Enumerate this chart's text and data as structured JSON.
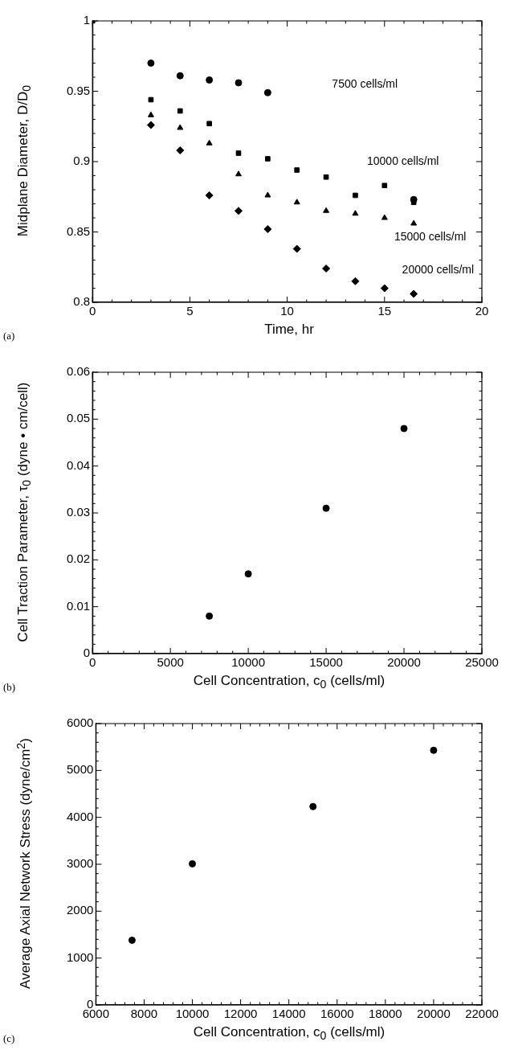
{
  "chart_data": [
    {
      "type": "scatter",
      "xlabel": "Time, hr",
      "ylabel": "Midplane Diameter, D/D$_{0}$",
      "xlim": [
        0,
        20
      ],
      "xticks": [
        0,
        5,
        10,
        15,
        20
      ],
      "ylim": [
        0.8,
        1
      ],
      "yticks": [
        0.8,
        0.85,
        0.9,
        0.95,
        1
      ],
      "grid": false,
      "legend": false,
      "series": [
        {
          "marker": "circle",
          "color": "#000000",
          "x": [
            3,
            4.5,
            6,
            7.5,
            9,
            16.5
          ],
          "values": [
            0.97,
            0.961,
            0.958,
            0.956,
            0.949,
            0.873
          ]
        },
        {
          "marker": "square",
          "color": "#000000",
          "x": [
            0,
            3,
            4.5,
            6,
            7.5,
            9,
            10.5,
            12,
            13.5,
            15,
            16.5
          ],
          "values": [
            1,
            0.944,
            0.936,
            0.927,
            0.906,
            0.902,
            0.894,
            0.889,
            0.876,
            0.883,
            0.871
          ]
        },
        {
          "marker": "triangle",
          "color": "#000000",
          "x": [
            3,
            4.5,
            6,
            7.5,
            9,
            10.5,
            12,
            13.5,
            15,
            16.5
          ],
          "values": [
            0.933,
            0.924,
            0.913,
            0.891,
            0.876,
            0.871,
            0.865,
            0.863,
            0.86,
            0.856
          ]
        },
        {
          "marker": "diamond",
          "color": "#000000",
          "x": [
            3,
            4.5,
            6,
            7.5,
            9,
            10.5,
            12,
            13.5,
            15,
            16.5
          ],
          "values": [
            0.926,
            0.908,
            0.876,
            0.865,
            0.852,
            0.838,
            0.824,
            0.815,
            0.81,
            0.806
          ]
        }
      ],
      "annotations": [
        "7500 cells/ml",
        "10000 cells/ml",
        "15000 cells/ml",
        "20000 cells/ml",
        "(a)"
      ]
    },
    {
      "type": "scatter",
      "xlabel": "Cell Concentration, c$_{0}$ (cells/ml)",
      "ylabel": "Cell Traction Parameter, τ$_{0}$ (dyne • cm/cell)",
      "xlim": [
        0,
        25000
      ],
      "xticks": [
        0,
        5000,
        10000,
        15000,
        20000,
        25000
      ],
      "ylim": [
        0,
        0.06
      ],
      "yticks": [
        0,
        0.01,
        0.02,
        0.03,
        0.04,
        0.05,
        0.06
      ],
      "grid": false,
      "legend": false,
      "marker": "circle",
      "series": [
        {
          "color": "#000000",
          "x": [
            7500,
            10000,
            15000,
            20000
          ],
          "values": [
            0.008,
            0.017,
            0.031,
            0.048
          ]
        }
      ],
      "annotations": [
        "(b)"
      ]
    },
    {
      "type": "scatter",
      "xlabel": "Cell Concentration, c$_{0}$ (cells/ml)",
      "ylabel": "Average Axial Network Stress (dyne/cm$^{2}$)",
      "xlim": [
        6000,
        22000
      ],
      "xticks": [
        6000,
        8000,
        10000,
        12000,
        14000,
        16000,
        18000,
        20000,
        22000
      ],
      "ylim": [
        0,
        6000
      ],
      "yticks": [
        0,
        1000,
        2000,
        3000,
        4000,
        5000,
        6000
      ],
      "grid": false,
      "legend": false,
      "marker": "circle",
      "series": [
        {
          "color": "#000000",
          "x": [
            7500,
            10000,
            15000,
            20000
          ],
          "values": [
            1380,
            3010,
            4230,
            5430
          ]
        }
      ],
      "annotations": [
        "(c)"
      ]
    }
  ]
}
